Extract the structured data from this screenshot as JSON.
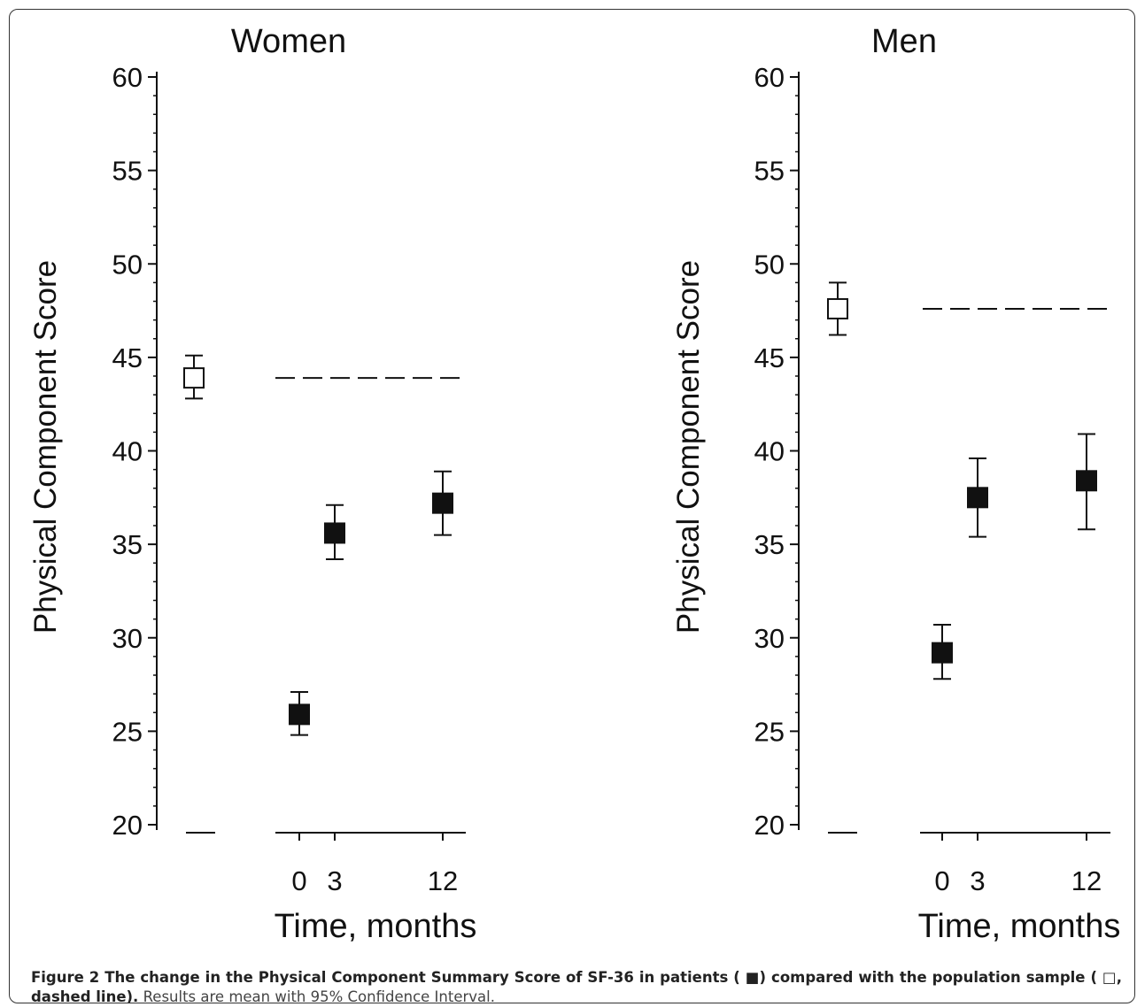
{
  "chart_data": [
    {
      "type": "scatter",
      "title": "Women",
      "ylabel": "Physical Component Score",
      "xlabel": "Time, months",
      "ylim": [
        20,
        60
      ],
      "yticks": [
        60,
        55,
        50,
        45,
        40,
        35,
        30,
        25,
        20
      ],
      "xticks": [
        "0",
        "3",
        "12"
      ],
      "grid": false,
      "reference_line": {
        "style": "dashed",
        "value": 43.9
      },
      "series": [
        {
          "marker": "open-square",
          "points": [
            {
              "x": "population",
              "y": 43.9,
              "ci_low": 42.8,
              "ci_high": 45.1
            }
          ]
        },
        {
          "marker": "filled-square",
          "points": [
            {
              "x": 0,
              "y": 25.9,
              "ci_low": 24.8,
              "ci_high": 27.1
            },
            {
              "x": 3,
              "y": 35.6,
              "ci_low": 34.2,
              "ci_high": 37.1
            },
            {
              "x": 12,
              "y": 37.2,
              "ci_low": 35.5,
              "ci_high": 38.9
            }
          ]
        }
      ]
    },
    {
      "type": "scatter",
      "title": "Men",
      "ylabel": "Physical Component Score",
      "xlabel": "Time, months",
      "ylim": [
        20,
        60
      ],
      "yticks": [
        60,
        55,
        50,
        45,
        40,
        35,
        30,
        25,
        20
      ],
      "xticks": [
        "0",
        "3",
        "12"
      ],
      "grid": false,
      "reference_line": {
        "style": "dashed",
        "value": 47.6
      },
      "series": [
        {
          "marker": "open-square",
          "points": [
            {
              "x": "population",
              "y": 47.6,
              "ci_low": 46.2,
              "ci_high": 49.0
            }
          ]
        },
        {
          "marker": "filled-square",
          "points": [
            {
              "x": 0,
              "y": 29.2,
              "ci_low": 27.8,
              "ci_high": 30.7
            },
            {
              "x": 3,
              "y": 37.5,
              "ci_low": 35.4,
              "ci_high": 39.6
            },
            {
              "x": 12,
              "y": 38.4,
              "ci_low": 35.8,
              "ci_high": 40.9
            }
          ]
        }
      ]
    }
  ],
  "caption": {
    "lead": "Figure 2 The change in the Physical Component Summary Score of SF-36 in patients ( ■) compared with the population sample ( □, dashed line).",
    "tail": "Results are mean with 95% Confidence Interval."
  }
}
